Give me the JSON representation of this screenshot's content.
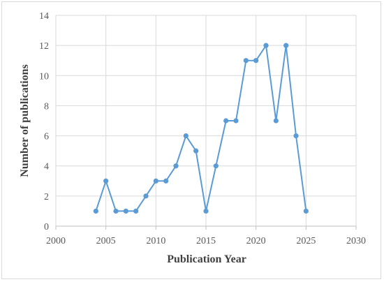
{
  "chart_data": {
    "type": "line",
    "title": "",
    "xlabel": "Publication Year",
    "ylabel": "Number of publications",
    "xlim": [
      2000,
      2030
    ],
    "ylim": [
      0,
      14
    ],
    "x_ticks": [
      2000,
      2005,
      2010,
      2015,
      2020,
      2025,
      2030
    ],
    "y_ticks": [
      0,
      2,
      4,
      6,
      8,
      10,
      12,
      14
    ],
    "grid": true,
    "legend": "none",
    "line_color": "#5b9bd5",
    "series": [
      {
        "x": [
          2004,
          2005,
          2006,
          2007,
          2008,
          2009,
          2010,
          2011,
          2012,
          2013,
          2014,
          2015,
          2016,
          2017,
          2018,
          2019,
          2020,
          2021,
          2022,
          2023,
          2024,
          2025
        ],
        "y": [
          1,
          3,
          1,
          1,
          1,
          2,
          3,
          3,
          4,
          6,
          5,
          1,
          4,
          7,
          7,
          11,
          11,
          12,
          7,
          12,
          6,
          1
        ]
      }
    ]
  }
}
